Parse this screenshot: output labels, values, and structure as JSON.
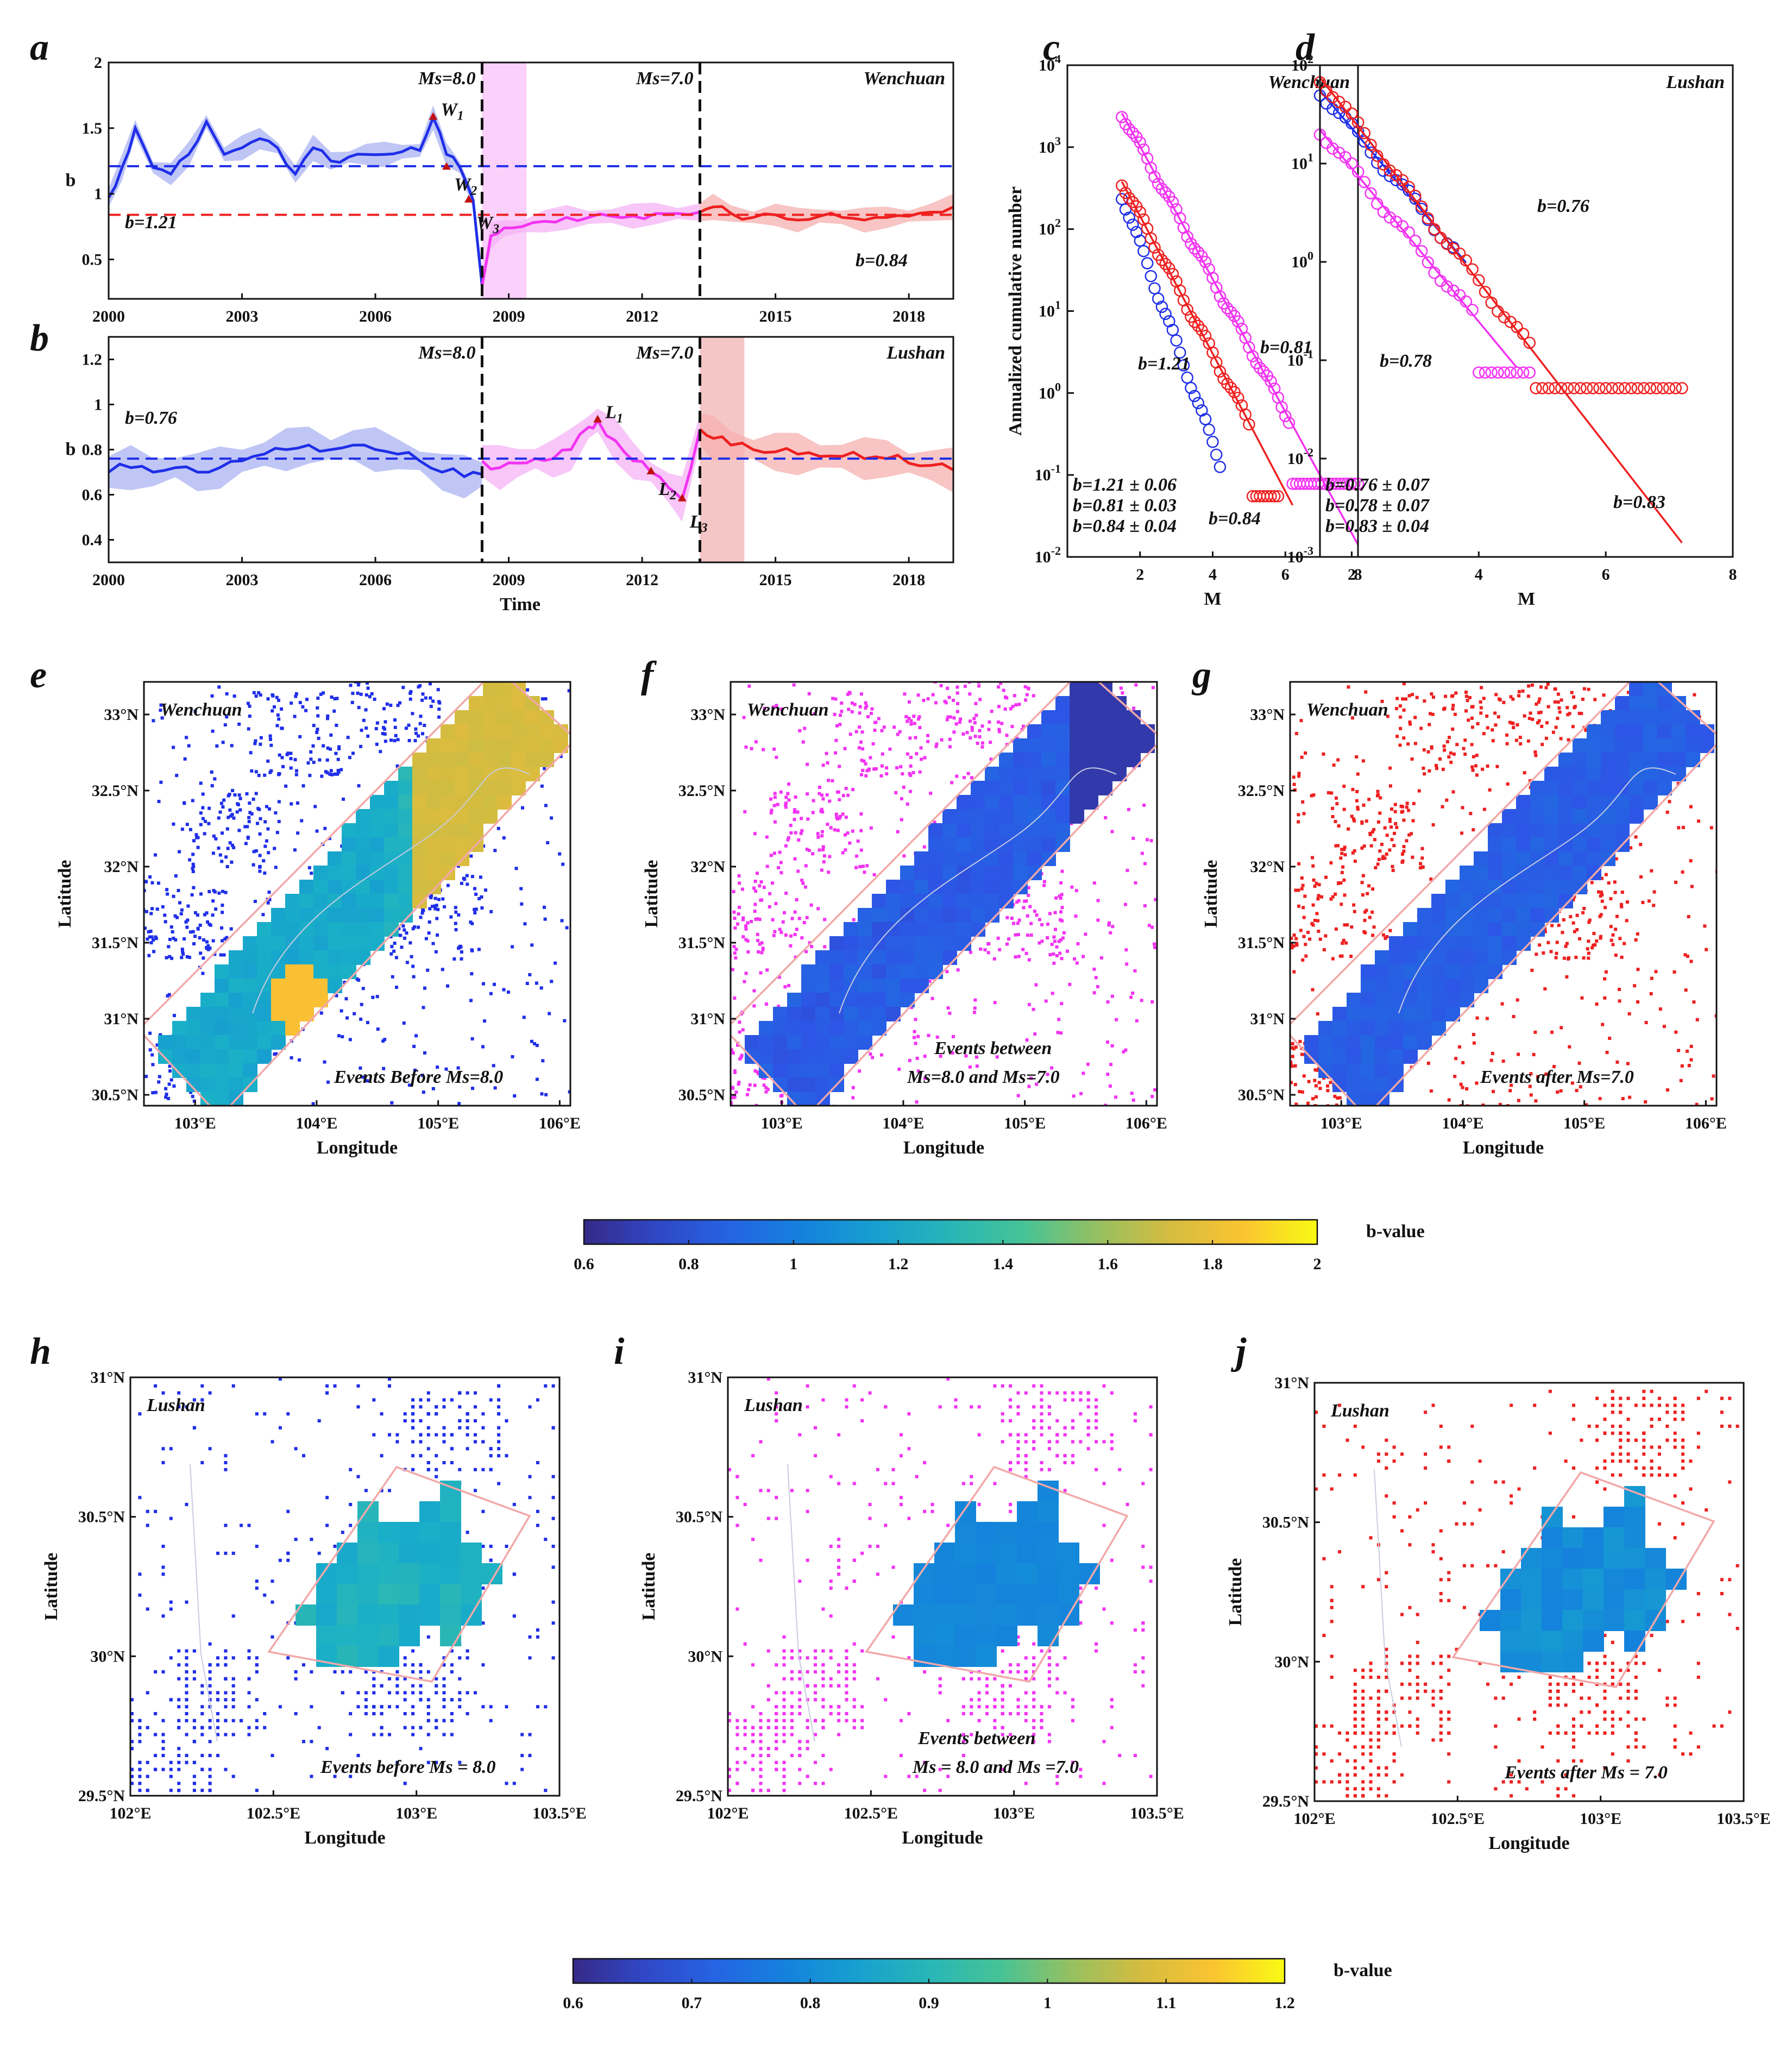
{
  "colors": {
    "blue": "#1f2ee8",
    "magenta": "#f233f2",
    "red": "#ee2020",
    "blueFill": "#aab3f2",
    "magFill": "#f5b3f5",
    "redFill": "#f5b0b0",
    "box": "#f2a8a8",
    "highlightA": "#fbd0fb",
    "highlightB": "#f5c6c6"
  },
  "panels": {
    "a": "a",
    "b": "b",
    "c": "c",
    "d": "d",
    "e": "e",
    "f": "f",
    "g": "g",
    "h": "h",
    "i": "i",
    "j": "j"
  },
  "chart_data": [
    {
      "id": "a",
      "type": "line",
      "title": "Wenchuan",
      "ylabel": "b",
      "xlabel": "",
      "xlim": [
        2000,
        2019
      ],
      "ylim": [
        0.2,
        2
      ],
      "xticks": [
        2000,
        2003,
        2006,
        2009,
        2012,
        2015,
        2018
      ],
      "yticks": [
        0.5,
        1,
        1.5,
        2
      ],
      "series": [
        {
          "name": "before Ms=8.0",
          "color": "blue",
          "x": [
            2000.0,
            2000.3,
            2000.6,
            2001.0,
            2001.4,
            2001.8,
            2002.2,
            2002.6,
            2003.0,
            2003.4,
            2003.8,
            2004.2,
            2004.6,
            2005.0,
            2005.4,
            2005.8,
            2006.2,
            2006.6,
            2007.0,
            2007.3,
            2007.6,
            2007.9,
            2008.2,
            2008.4
          ],
          "y": [
            0.97,
            1.2,
            1.5,
            1.2,
            1.15,
            1.3,
            1.55,
            1.3,
            1.35,
            1.42,
            1.35,
            1.15,
            1.35,
            1.25,
            1.28,
            1.3,
            1.3,
            1.32,
            1.33,
            1.58,
            1.3,
            1.2,
            0.95,
            0.3
          ]
        },
        {
          "name": "between Ms=8.0 and Ms=7.0",
          "color": "magenta",
          "x": [
            2008.4,
            2008.6,
            2008.9,
            2009.3,
            2009.8,
            2010.3,
            2010.8,
            2011.3,
            2011.8,
            2012.3,
            2012.8,
            2013.3
          ],
          "y": [
            0.3,
            0.68,
            0.74,
            0.75,
            0.79,
            0.82,
            0.82,
            0.83,
            0.83,
            0.85,
            0.85,
            0.86
          ]
        },
        {
          "name": "after Ms=7.0",
          "color": "red",
          "x": [
            2013.3,
            2013.6,
            2014.0,
            2014.5,
            2015.0,
            2015.5,
            2016.0,
            2016.5,
            2017.0,
            2017.5,
            2018.0,
            2018.5,
            2019.0
          ],
          "y": [
            0.86,
            0.9,
            0.85,
            0.82,
            0.84,
            0.8,
            0.83,
            0.82,
            0.8,
            0.82,
            0.83,
            0.86,
            0.9
          ]
        }
      ],
      "reference_lines": [
        {
          "y": 1.21,
          "color": "blue",
          "style": "dashed"
        },
        {
          "y": 0.84,
          "color": "red",
          "style": "dashed"
        }
      ],
      "event_lines": [
        {
          "x": 2008.4,
          "label": "Ms=8.0"
        },
        {
          "x": 2013.3,
          "label": "Ms=7.0"
        }
      ],
      "highlight": {
        "x": [
          2008.4,
          2009.4
        ],
        "color": "highlightA"
      },
      "markers": [
        {
          "label": "W",
          "sub": "1",
          "x": 2007.3,
          "y": 1.58
        },
        {
          "label": "W",
          "sub": "2",
          "x": 2007.6,
          "y": 1.2
        },
        {
          "label": "W",
          "sub": "3",
          "x": 2008.1,
          "y": 0.95
        }
      ],
      "annotations": {
        "left": "b=1.21",
        "right": "b=0.84"
      }
    },
    {
      "id": "b",
      "type": "line",
      "title": "Lushan",
      "ylabel": "b",
      "xlabel": "Time",
      "xlim": [
        2000,
        2019
      ],
      "ylim": [
        0.3,
        1.3
      ],
      "xticks": [
        2000,
        2003,
        2006,
        2009,
        2012,
        2015,
        2018
      ],
      "yticks": [
        0.4,
        0.6,
        0.8,
        1,
        1.2
      ],
      "series": [
        {
          "name": "before Ms=8.0",
          "color": "blue",
          "x": [
            2000.0,
            2000.5,
            2001.0,
            2001.5,
            2002.0,
            2002.5,
            2003.0,
            2003.5,
            2004.0,
            2004.5,
            2005.0,
            2005.5,
            2006.0,
            2006.5,
            2007.0,
            2007.5,
            2008.0,
            2008.4
          ],
          "y": [
            0.7,
            0.72,
            0.7,
            0.72,
            0.7,
            0.72,
            0.75,
            0.78,
            0.8,
            0.82,
            0.8,
            0.82,
            0.8,
            0.78,
            0.75,
            0.7,
            0.68,
            0.69
          ]
        },
        {
          "name": "between Ms=8.0 and Ms=7.0",
          "color": "magenta",
          "x": [
            2008.4,
            2008.8,
            2009.2,
            2009.6,
            2010.0,
            2010.4,
            2010.8,
            2011.0,
            2011.4,
            2011.8,
            2012.2,
            2012.6,
            2012.9,
            2013.3
          ],
          "y": [
            0.75,
            0.72,
            0.74,
            0.76,
            0.76,
            0.8,
            0.9,
            0.93,
            0.84,
            0.75,
            0.7,
            0.63,
            0.58,
            0.89
          ]
        },
        {
          "name": "after Ms=7.0",
          "color": "red",
          "x": [
            2013.3,
            2013.6,
            2014.0,
            2014.5,
            2015.0,
            2015.5,
            2016.0,
            2016.5,
            2017.0,
            2017.5,
            2018.0,
            2018.5,
            2019.0
          ],
          "y": [
            0.89,
            0.85,
            0.82,
            0.8,
            0.79,
            0.78,
            0.77,
            0.77,
            0.76,
            0.76,
            0.74,
            0.73,
            0.71
          ]
        }
      ],
      "reference_lines": [
        {
          "y": 0.76,
          "color": "blue",
          "style": "dashed"
        }
      ],
      "event_lines": [
        {
          "x": 2008.4,
          "label": "Ms=8.0"
        },
        {
          "x": 2013.3,
          "label": "Ms=7.0"
        }
      ],
      "highlight": {
        "x": [
          2013.3,
          2014.3
        ],
        "color": "highlightB"
      },
      "markers": [
        {
          "label": "L",
          "sub": "1",
          "x": 2011.0,
          "y": 0.93
        },
        {
          "label": "L",
          "sub": "2",
          "x": 2012.2,
          "y": 0.7
        },
        {
          "label": "L",
          "sub": "3",
          "x": 2012.9,
          "y": 0.58
        }
      ],
      "annotations": {
        "left": "b=0.76"
      }
    },
    {
      "id": "c",
      "type": "scatter",
      "title": "Wenchuan",
      "xlabel": "M",
      "ylabel": "Annualized cumulative number",
      "xlim": [
        0,
        8
      ],
      "ylim_log10": [
        -2,
        4
      ],
      "xticks": [
        2,
        4,
        6,
        8
      ],
      "yticks_log10": [
        -2,
        -1,
        0,
        1,
        2,
        3,
        4
      ],
      "series": [
        {
          "name": "before Ms=8.0",
          "color": "blue",
          "b": 1.21,
          "mmin": 1.5,
          "mmax": 4.2,
          "n0": 260,
          "fit": false
        },
        {
          "name": "between Ms=8.0 and Ms=7.0",
          "color": "magenta",
          "b": 0.81,
          "mmin": 1.5,
          "mmax": 8.0,
          "n0": 2600,
          "fit": true,
          "floor": 0.078,
          "floor_from": 6.1
        },
        {
          "name": "after Ms=7.0",
          "color": "red",
          "b": 0.84,
          "mmin": 1.5,
          "mmax": 5.8,
          "n0": 380,
          "fit": true,
          "floor": 0.055
        }
      ],
      "labels": {
        "blue": "b=1.21",
        "magenta": "b=0.81",
        "red": "b=0.84"
      },
      "legend": [
        "b=1.21 ± 0.06",
        "b=0.81 ± 0.03",
        "b=0.84 ± 0.04"
      ]
    },
    {
      "id": "d",
      "type": "scatter",
      "title": "Lushan",
      "xlabel": "M",
      "ylabel": "",
      "xlim": [
        1.5,
        8
      ],
      "ylim_log10": [
        -3,
        2
      ],
      "xticks": [
        2,
        4,
        6,
        8
      ],
      "yticks_log10": [
        -3,
        -2,
        -1,
        0,
        1,
        2
      ],
      "series": [
        {
          "name": "before Ms=8.0",
          "color": "blue",
          "b": 0.76,
          "mmin": 1.5,
          "mmax": 3.6,
          "n0": 55,
          "fit": true
        },
        {
          "name": "between Ms=8.0 and Ms=7.0",
          "color": "magenta",
          "b": 0.78,
          "mmin": 1.5,
          "mmax": 4.8,
          "n0": 22,
          "fit": true,
          "floor": 0.075,
          "floor_from": 4.0
        },
        {
          "name": "after Ms=7.0",
          "color": "red",
          "b": 0.83,
          "mmin": 1.5,
          "mmax": 7.2,
          "n0": 75,
          "fit": true,
          "floor": 0.052,
          "floor_from": 4.8
        }
      ],
      "labels": {
        "blue": "b=0.76",
        "magenta": "b=0.78",
        "red": "b=0.83"
      },
      "legend": [
        "b=0.76 ± 0.07",
        "b=0.78 ± 0.07",
        "b=0.83 ± 0.04"
      ]
    },
    {
      "id": "e",
      "type": "heatmap",
      "title": "Wenchuan",
      "caption": "Events Before Ms=8.0",
      "xlabel": "Longitude",
      "ylabel": "Latitude",
      "xticks": [
        "103°E",
        "104°E",
        "105°E",
        "106°E"
      ],
      "yticks": [
        "30.5°N",
        "31°N",
        "31.5°N",
        "32°N",
        "32.5°N",
        "33°N"
      ],
      "event_color": "blue",
      "base_b": 1.3
    },
    {
      "id": "f",
      "type": "heatmap",
      "title": "Wenchuan",
      "caption": "Events between Ms=8.0 and Ms=7.0",
      "xlabel": "Longitude",
      "ylabel": "Latitude",
      "xticks": [
        "103°E",
        "104°E",
        "105°E",
        "106°E"
      ],
      "yticks": [
        "30.5°N",
        "31°N",
        "31.5°N",
        "32°N",
        "32.5°N",
        "33°N"
      ],
      "event_color": "magenta",
      "base_b": 0.85
    },
    {
      "id": "g",
      "type": "heatmap",
      "title": "Wenchuan",
      "caption": "Events after Ms=7.0",
      "xlabel": "Longitude",
      "ylabel": "Latitude",
      "xticks": [
        "103°E",
        "104°E",
        "105°E",
        "106°E"
      ],
      "yticks": [
        "30.5°N",
        "31°N",
        "31.5°N",
        "32°N",
        "32.5°N",
        "33°N"
      ],
      "event_color": "red",
      "base_b": 0.85
    },
    {
      "id": "h",
      "type": "heatmap",
      "title": "Lushan",
      "caption": "Events before Ms = 8.0",
      "xlabel": "Longitude",
      "ylabel": "Latitude",
      "xticks": [
        "102°E",
        "102.5°E",
        "103°E",
        "103.5°E"
      ],
      "yticks": [
        "29.5°N",
        "30°N",
        "30.5°N",
        "31°N"
      ],
      "event_color": "blue",
      "base_b": 0.87
    },
    {
      "id": "i",
      "type": "heatmap",
      "title": "Lushan",
      "caption": "Events between Ms = 8.0 and Ms =7.0",
      "xlabel": "Longitude",
      "ylabel": "Latitude",
      "xticks": [
        "102°E",
        "102.5°E",
        "103°E",
        "103.5°E"
      ],
      "yticks": [
        "29.5°N",
        "30°N",
        "30.5°N",
        "31°N"
      ],
      "event_color": "magenta",
      "base_b": 0.78
    },
    {
      "id": "j",
      "type": "heatmap",
      "title": "Lushan",
      "caption": "Events after Ms = 7.0",
      "xlabel": "Longitude",
      "ylabel": "Latitude",
      "xticks": [
        "102°E",
        "102.5°E",
        "103°E",
        "103.5°E"
      ],
      "yticks": [
        "29.5°N",
        "30°N",
        "30.5°N",
        "31°N"
      ],
      "event_color": "red",
      "base_b": 0.8
    }
  ],
  "colorbars": [
    {
      "label": "b-value",
      "range": [
        0.6,
        2
      ],
      "ticks": [
        "0.6",
        "0.8",
        "1",
        "1.2",
        "1.4",
        "1.6",
        "1.8",
        "2"
      ]
    },
    {
      "label": "b-value",
      "range": [
        0.6,
        1.2
      ],
      "ticks": [
        "0.6",
        "0.7",
        "0.8",
        "0.9",
        "1",
        "1.1",
        "1.2"
      ]
    }
  ]
}
